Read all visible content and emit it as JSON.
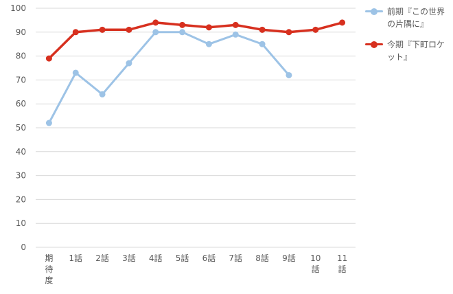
{
  "colors": {
    "series_1": "#9dc3e6",
    "series_2": "#d7301f",
    "grid": "#d9d9d9",
    "text": "#595959"
  },
  "chart_data": {
    "type": "line",
    "categories": [
      "期待度",
      "1話",
      "2話",
      "3話",
      "4話",
      "5話",
      "6話",
      "7話",
      "8話",
      "9話",
      "10話",
      "11話"
    ],
    "series": [
      {
        "name": "前期『この世界の片隅に』",
        "values": [
          52,
          73,
          64,
          77,
          90,
          90,
          85,
          89,
          85,
          72,
          null,
          null
        ]
      },
      {
        "name": "今期『下町ロケット』",
        "values": [
          79,
          90,
          91,
          91,
          94,
          93,
          92,
          93,
          91,
          90,
          91,
          94
        ]
      }
    ],
    "yticks": [
      0,
      10,
      20,
      30,
      40,
      50,
      60,
      70,
      80,
      90,
      100
    ],
    "ylim": [
      0,
      100
    ],
    "grid": true,
    "legend": "right"
  }
}
